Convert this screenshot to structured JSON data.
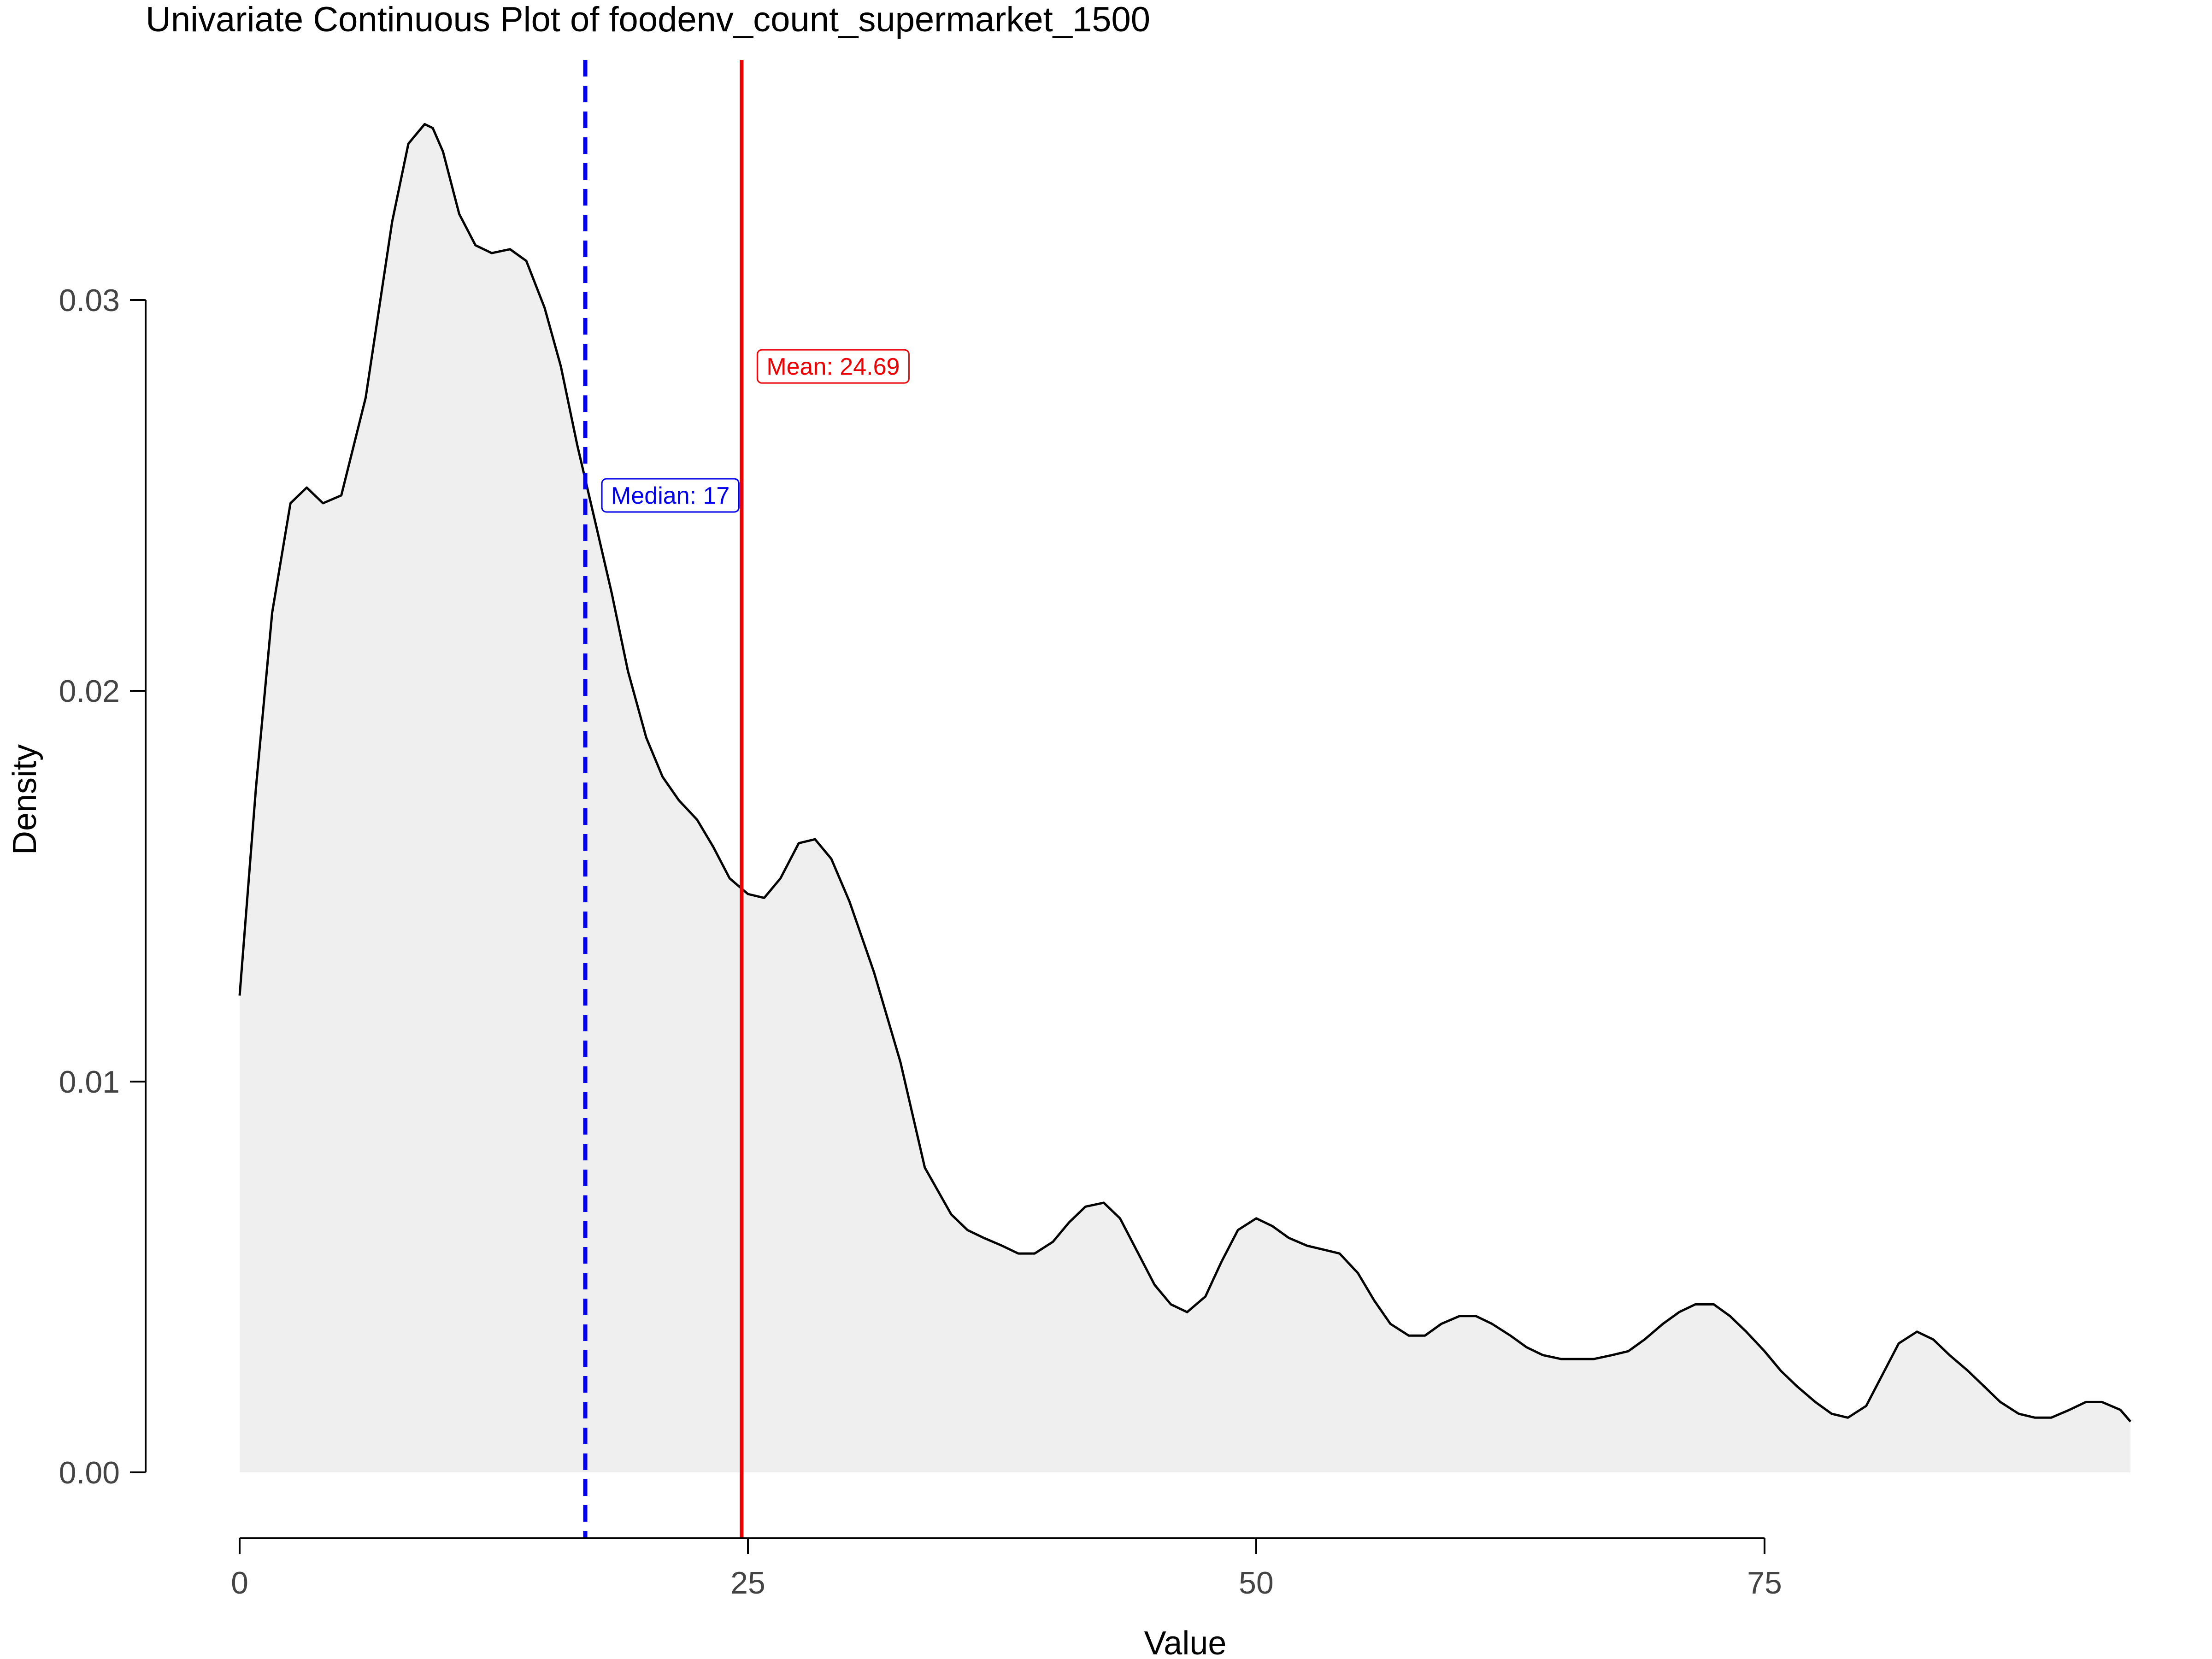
{
  "chart_data": {
    "type": "area",
    "title": "Univariate Continuous Plot of foodenv_count_supermarket_1500",
    "xlabel": "Value",
    "ylabel": "Density",
    "xlim": [
      0,
      93
    ],
    "ylim": [
      0,
      0.036
    ],
    "x_ticks": [
      0,
      25,
      50,
      75
    ],
    "x_tick_labels": [
      "0",
      "25",
      "50",
      "75"
    ],
    "y_ticks": [
      0,
      0.01,
      0.02,
      0.03
    ],
    "y_tick_labels": [
      "0.00",
      "0.01",
      "0.02",
      "0.03"
    ],
    "grid": false,
    "fill_color": "#efefef",
    "line_color": "#000000",
    "density": {
      "x": [
        0,
        0.8,
        1.6,
        2.5,
        3.3,
        4.1,
        5.0,
        6.2,
        7.5,
        8.3,
        9.1,
        9.5,
        10.0,
        10.8,
        11.6,
        12.4,
        13.3,
        14.1,
        15.0,
        15.8,
        16.6,
        17.5,
        18.3,
        19.1,
        20.0,
        20.8,
        21.6,
        22.5,
        23.3,
        24.1,
        25.0,
        25.8,
        26.6,
        27.5,
        28.3,
        29.1,
        30.0,
        31.2,
        32.5,
        33.7,
        35.0,
        35.8,
        36.6,
        37.5,
        38.3,
        39.1,
        40.0,
        40.8,
        41.6,
        42.5,
        43.3,
        44.1,
        45.0,
        45.8,
        46.6,
        47.5,
        48.3,
        49.1,
        50.0,
        50.8,
        51.6,
        52.5,
        53.3,
        54.1,
        55.0,
        55.8,
        56.6,
        57.5,
        58.3,
        59.1,
        60.0,
        60.8,
        61.6,
        62.5,
        63.3,
        64.1,
        65.0,
        65.8,
        66.6,
        67.5,
        68.3,
        69.1,
        70.0,
        70.8,
        71.6,
        72.5,
        73.3,
        74.1,
        75.0,
        75.8,
        76.6,
        77.5,
        78.3,
        79.1,
        80.0,
        80.8,
        81.6,
        82.5,
        83.3,
        84.1,
        85.0,
        85.8,
        86.6,
        87.5,
        88.3,
        89.1,
        90.0,
        90.8,
        91.6,
        92.5,
        93.0
      ],
      "y": [
        0.0122,
        0.0175,
        0.022,
        0.0248,
        0.0252,
        0.0248,
        0.025,
        0.0275,
        0.032,
        0.034,
        0.0345,
        0.0344,
        0.0338,
        0.0322,
        0.0314,
        0.0312,
        0.0313,
        0.031,
        0.0298,
        0.0283,
        0.0263,
        0.0243,
        0.0225,
        0.0205,
        0.0188,
        0.0178,
        0.0172,
        0.0167,
        0.016,
        0.0152,
        0.0148,
        0.0147,
        0.0152,
        0.0161,
        0.0162,
        0.0157,
        0.0146,
        0.0128,
        0.0105,
        0.0078,
        0.0066,
        0.0062,
        0.006,
        0.0058,
        0.0056,
        0.0056,
        0.0059,
        0.0064,
        0.0068,
        0.0069,
        0.0065,
        0.0057,
        0.0048,
        0.0043,
        0.0041,
        0.0045,
        0.0054,
        0.0062,
        0.0065,
        0.0063,
        0.006,
        0.0058,
        0.0057,
        0.0056,
        0.0051,
        0.0044,
        0.0038,
        0.0035,
        0.0035,
        0.0038,
        0.004,
        0.004,
        0.0038,
        0.0035,
        0.0032,
        0.003,
        0.0029,
        0.0029,
        0.0029,
        0.003,
        0.0031,
        0.0034,
        0.0038,
        0.0041,
        0.0043,
        0.0043,
        0.004,
        0.0036,
        0.0031,
        0.0026,
        0.0022,
        0.0018,
        0.0015,
        0.0014,
        0.0017,
        0.0025,
        0.0033,
        0.0036,
        0.0034,
        0.003,
        0.0026,
        0.0022,
        0.0018,
        0.0015,
        0.0014,
        0.0014,
        0.0016,
        0.0018,
        0.0018,
        0.0016,
        0.0013
      ]
    },
    "median": {
      "value": 17,
      "label": "Median: 17",
      "color": "#0000ee",
      "style": "dashed"
    },
    "mean": {
      "value": 24.69,
      "label": "Mean: 24.69",
      "color": "#ee0000",
      "style": "solid"
    }
  }
}
